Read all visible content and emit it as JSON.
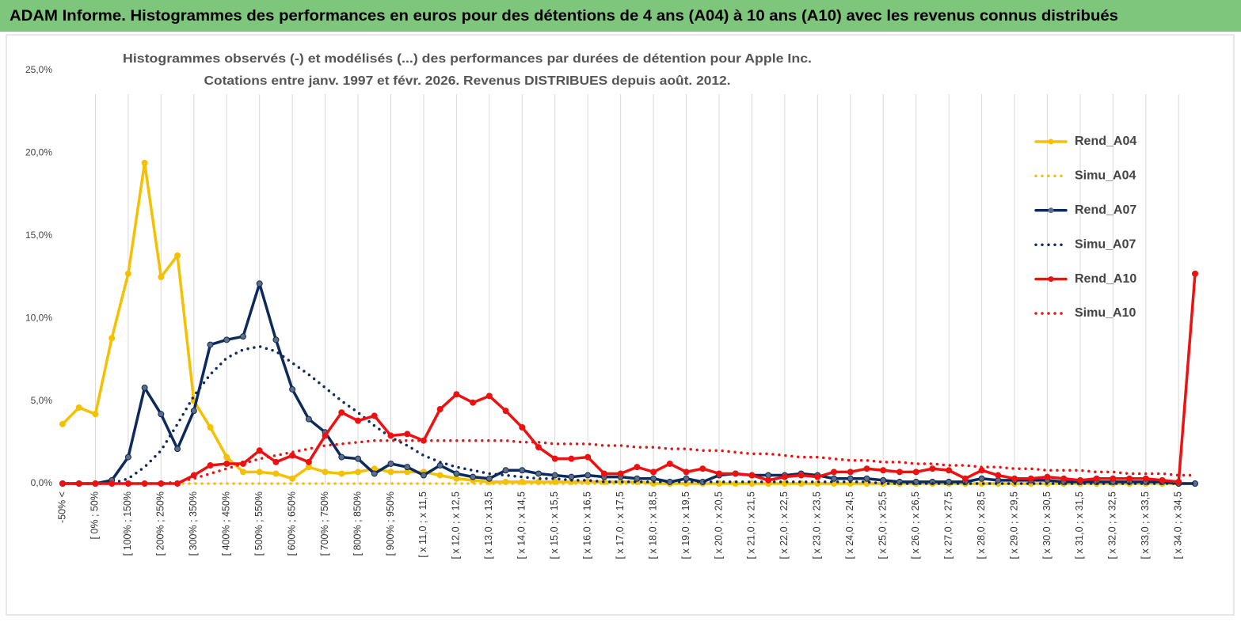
{
  "header": {
    "title": "ADAM Informe. Histogrammes des performances en euros pour des détentions de 4 ans (A04) à 10 ans (A10) avec les revenus connus distribués"
  },
  "chart_data": {
    "type": "line",
    "title": "Histogrammes observés (-) et modélisés (...) des performances par durées de détention pour Apple Inc.",
    "subtitle": "Cotations entre janv. 1997 et févr.  2026. Revenus DISTRIBUES depuis août. 2012.",
    "categories": [
      "-50% <",
      null,
      "[ 0% ; 50%",
      null,
      "[ 100% ; 150%",
      null,
      "[ 200% ; 250%",
      null,
      "[ 300% ; 350%",
      null,
      "[ 400% ; 450%",
      null,
      "[ 500% ; 550%",
      null,
      "[ 600% ; 650%",
      null,
      "[ 700% ; 750%",
      null,
      "[ 800% ; 850%",
      null,
      "[ 900% ; 950%",
      null,
      "[ x 11,0 ; x 11,5",
      null,
      "[ x 12,0 ; x 12,5",
      null,
      "[ x 13,0 ; x 13,5",
      null,
      "[ x 14,0 ; x 14,5",
      null,
      "[ x 15,0 ; x 15,5",
      null,
      "[ x 16,0 ; x 16,5",
      null,
      "[ x 17,0 ; x 17,5",
      null,
      "[ x 18,0 ; x 18,5",
      null,
      "[ x 19,0 ; x 19,5",
      null,
      "[ x 20,0 ; x 20,5",
      null,
      "[ x 21,0 ; x 21,5",
      null,
      "[ x 22,0 ; x 22,5",
      null,
      "[ x 23,0 ; x 23,5",
      null,
      "[ x 24,0 ; x 24,5",
      null,
      "[ x 25,0 ; x 25,5",
      null,
      "[ x 26,0 ; x 26,5",
      null,
      "[ x 27,0 ; x 27,5",
      null,
      "[ x 28,0 ; x 28,5",
      null,
      "[ x 29,0 ; x 29,5",
      null,
      "[ x 30,0 ; x 30,5",
      null,
      "[ x 31,0 ; x 31,5",
      null,
      "[ x 32,0 ; x 32,5",
      null,
      "[ x 33,0 ; x 33,5",
      null,
      "[ x 34,0 ; x 34,5",
      null
    ],
    "series": [
      {
        "name": "Rend_A04",
        "color": "#f5c000",
        "line_style": "solid",
        "markers": true,
        "values": [
          3.6,
          4.6,
          4.2,
          8.8,
          12.7,
          19.4,
          12.5,
          13.8,
          5.0,
          3.4,
          1.6,
          0.7,
          0.7,
          0.6,
          0.3,
          1.0,
          0.7,
          0.6,
          0.7,
          0.9,
          0.7,
          0.7,
          0.7,
          0.5,
          0.3,
          0.2,
          0.1,
          0.1,
          0.1,
          0.1,
          0.1,
          0.1,
          0.1,
          0.1,
          0.1,
          0.1,
          0,
          0,
          0,
          0,
          0,
          0,
          0,
          0,
          0,
          0,
          0,
          0,
          0,
          0,
          0,
          0,
          0,
          0,
          0,
          0,
          0,
          0,
          0,
          0,
          0,
          0,
          0,
          0,
          0,
          0,
          0,
          0,
          0,
          0
        ]
      },
      {
        "name": "Simu_A04",
        "color": "#f5c000",
        "line_style": "dotted",
        "markers": false,
        "values": [
          0,
          0,
          0,
          0,
          0,
          0,
          0,
          0,
          0,
          0,
          0,
          0,
          0,
          0,
          0,
          0,
          0,
          0,
          0,
          0,
          0,
          0,
          0,
          0,
          0,
          0,
          0,
          0,
          0,
          0,
          0,
          0,
          0,
          0,
          0,
          0,
          0,
          0,
          0,
          0,
          0,
          0,
          0,
          0,
          0,
          0,
          0,
          0,
          0,
          0,
          0,
          0,
          0,
          0,
          0,
          0,
          0,
          0,
          0,
          0,
          0,
          0,
          0,
          0,
          0,
          0,
          0,
          0,
          0,
          0
        ]
      },
      {
        "name": "Rend_A07",
        "color": "#0c2a5c",
        "line_style": "solid",
        "markers": true,
        "values": [
          0,
          0,
          0,
          0.2,
          1.6,
          5.8,
          4.2,
          2.1,
          4.4,
          8.4,
          8.7,
          8.9,
          12.1,
          8.7,
          5.7,
          3.9,
          3.1,
          1.6,
          1.5,
          0.6,
          1.2,
          1.0,
          0.5,
          1.1,
          0.6,
          0.4,
          0.3,
          0.8,
          0.8,
          0.6,
          0.5,
          0.4,
          0.5,
          0.4,
          0.4,
          0.3,
          0.3,
          0.1,
          0.3,
          0.1,
          0.5,
          0.6,
          0.5,
          0.5,
          0.5,
          0.6,
          0.5,
          0.3,
          0.3,
          0.3,
          0.2,
          0.1,
          0.1,
          0.1,
          0.1,
          0.1,
          0.3,
          0.2,
          0.2,
          0.2,
          0.2,
          0.1,
          0.1,
          0.1,
          0.1,
          0.1,
          0.1,
          0.1,
          0,
          0
        ]
      },
      {
        "name": "Simu_A07",
        "color": "#0c2a5c",
        "line_style": "dotted",
        "markers": false,
        "values": [
          0,
          0,
          0,
          0,
          0.3,
          1.0,
          2.0,
          3.6,
          5.3,
          6.6,
          7.6,
          8.1,
          8.3,
          8.0,
          7.3,
          6.6,
          5.8,
          5.0,
          4.3,
          3.5,
          2.8,
          2.3,
          1.7,
          1.3,
          1.0,
          0.8,
          0.6,
          0.5,
          0.4,
          0.3,
          0.3,
          0.2,
          0.2,
          0.1,
          0.1,
          0.1,
          0.1,
          0.1,
          0.1,
          0.1,
          0.1,
          0.1,
          0.1,
          0.1,
          0.1,
          0.1,
          0.1,
          0.1,
          0.1,
          0.1,
          0,
          0,
          0,
          0,
          0,
          0,
          0,
          0,
          0,
          0,
          0,
          0,
          0,
          0,
          0,
          0,
          0,
          0,
          0,
          0
        ]
      },
      {
        "name": "Rend_A10",
        "color": "#ee1111",
        "line_style": "solid",
        "markers": true,
        "values": [
          0,
          0,
          0,
          0,
          0,
          0,
          0,
          0,
          0.5,
          1.1,
          1.2,
          1.2,
          2.0,
          1.3,
          1.7,
          1.3,
          2.9,
          4.3,
          3.8,
          4.1,
          2.9,
          3.0,
          2.6,
          4.5,
          5.4,
          4.9,
          5.3,
          4.4,
          3.4,
          2.2,
          1.5,
          1.5,
          1.6,
          0.6,
          0.6,
          1.0,
          0.7,
          1.2,
          0.7,
          0.9,
          0.6,
          0.6,
          0.5,
          0.2,
          0.4,
          0.5,
          0.4,
          0.7,
          0.7,
          0.9,
          0.8,
          0.7,
          0.7,
          0.9,
          0.8,
          0.3,
          0.8,
          0.5,
          0.3,
          0.3,
          0.4,
          0.3,
          0.2,
          0.3,
          0.3,
          0.3,
          0.3,
          0.2,
          0.1,
          12.7
        ]
      },
      {
        "name": "Simu_A10",
        "color": "#ee1111",
        "line_style": "dotted",
        "markers": false,
        "values": [
          0,
          0,
          0,
          0,
          0,
          0,
          0,
          0.1,
          0.3,
          0.6,
          0.9,
          1.2,
          1.5,
          1.7,
          1.9,
          2.1,
          2.3,
          2.4,
          2.5,
          2.6,
          2.6,
          2.6,
          2.6,
          2.6,
          2.6,
          2.6,
          2.6,
          2.6,
          2.5,
          2.5,
          2.4,
          2.4,
          2.4,
          2.3,
          2.3,
          2.2,
          2.2,
          2.1,
          2.1,
          2.0,
          2.0,
          1.9,
          1.8,
          1.8,
          1.7,
          1.6,
          1.6,
          1.5,
          1.4,
          1.4,
          1.3,
          1.3,
          1.2,
          1.2,
          1.1,
          1.1,
          1.0,
          1.0,
          0.9,
          0.9,
          0.8,
          0.8,
          0.8,
          0.7,
          0.7,
          0.6,
          0.6,
          0.6,
          0.5,
          0.5
        ]
      }
    ],
    "ylim": [
      0,
      25
    ],
    "yticks": [
      {
        "value": 0,
        "label": "0,0%"
      },
      {
        "value": 5,
        "label": "5,0%"
      },
      {
        "value": 10,
        "label": "10,0%"
      },
      {
        "value": 15,
        "label": "15,0%"
      },
      {
        "value": 20,
        "label": "20,0%"
      },
      {
        "value": 25,
        "label": "25,0%"
      }
    ],
    "grid": true,
    "legend": "right"
  }
}
